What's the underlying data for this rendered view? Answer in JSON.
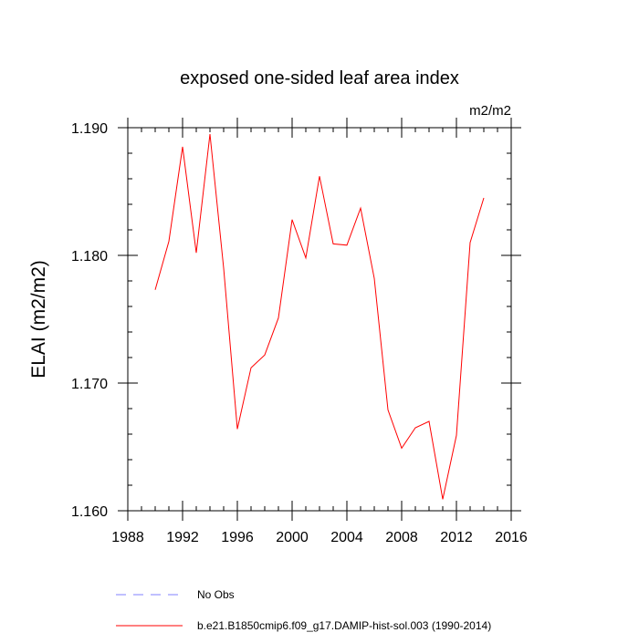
{
  "chart_data": {
    "type": "line",
    "title": "exposed one-sided leaf area index",
    "units_label": "m2/m2",
    "ylabel": "ELAI  (m2/m2)",
    "xlabel": "",
    "xlim": [
      1988,
      2016
    ],
    "ylim": [
      1.16,
      1.19
    ],
    "x_ticks": [
      1988,
      1992,
      1996,
      2000,
      2004,
      2008,
      2012,
      2016
    ],
    "x_tick_labels": [
      "1988",
      "1992",
      "1996",
      "2000",
      "2004",
      "2008",
      "2012",
      "2016"
    ],
    "x_minor_step": 1,
    "y_ticks": [
      1.16,
      1.17,
      1.18,
      1.19
    ],
    "y_tick_labels": [
      "1.160",
      "1.170",
      "1.180",
      "1.190"
    ],
    "y_minor_step": 0.002,
    "grid": false,
    "series": [
      {
        "name": "b.e21.B1850cmip6.f09_g17.DAMIP-hist-sol.003 (1990-2014)",
        "color": "#ff0000",
        "x": [
          1990,
          1991,
          1992,
          1993,
          1994,
          1995,
          1996,
          1997,
          1998,
          1999,
          2000,
          2001,
          2002,
          2003,
          2004,
          2005,
          2006,
          2007,
          2008,
          2009,
          2010,
          2011,
          2012,
          2013,
          2014
        ],
        "values": [
          1.1773,
          1.1811,
          1.1885,
          1.1802,
          1.1895,
          1.179,
          1.1664,
          1.1712,
          1.1722,
          1.1751,
          1.1828,
          1.1798,
          1.1862,
          1.1809,
          1.1808,
          1.1837,
          1.1782,
          1.1679,
          1.1649,
          1.1665,
          1.167,
          1.1609,
          1.1659,
          1.181,
          1.1845
        ]
      }
    ],
    "legend": {
      "placement": "bottom",
      "entries": [
        {
          "label": "No Obs",
          "color": "#8080ff",
          "style": "dashed"
        },
        {
          "label": "b.e21.B1850cmip6.f09_g17.DAMIP-hist-sol.003 (1990-2014)",
          "color": "#ff0000",
          "style": "solid"
        }
      ]
    }
  }
}
